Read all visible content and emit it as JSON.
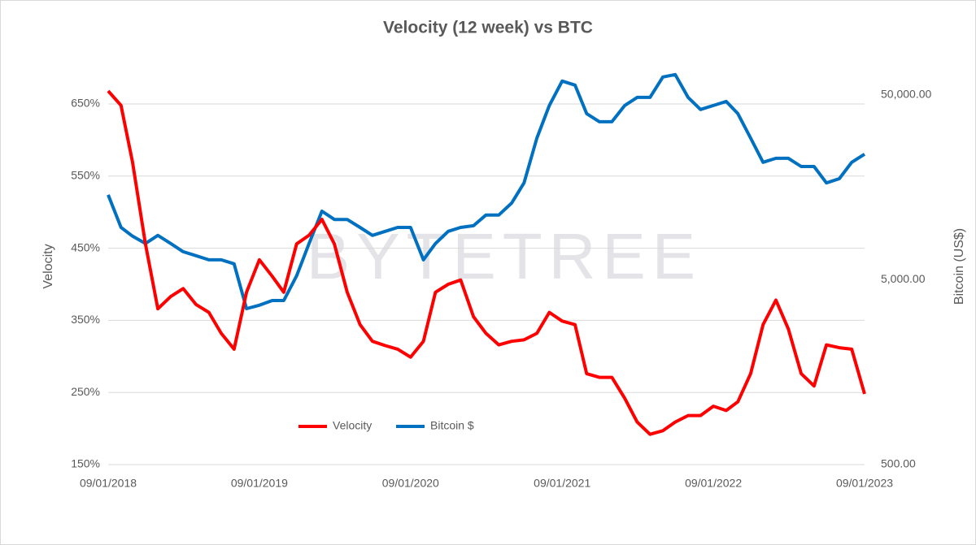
{
  "chart_data": {
    "type": "line",
    "title": "Velocity (12 week) vs BTC",
    "ylabel": "Velocity",
    "y2label": "Bitcoin (US$)",
    "watermark": "BYTETREE",
    "x": [
      "2018-01-09",
      "2018-02-09",
      "2018-03-09",
      "2018-04-09",
      "2018-05-09",
      "2018-06-09",
      "2018-07-09",
      "2018-08-09",
      "2018-09-09",
      "2018-10-09",
      "2018-11-09",
      "2018-12-09",
      "2019-01-09",
      "2019-02-09",
      "2019-03-09",
      "2019-04-09",
      "2019-05-09",
      "2019-06-09",
      "2019-07-09",
      "2019-08-09",
      "2019-09-09",
      "2019-10-09",
      "2019-11-09",
      "2019-12-09",
      "2020-01-09",
      "2020-02-09",
      "2020-03-09",
      "2020-04-09",
      "2020-05-09",
      "2020-06-09",
      "2020-07-09",
      "2020-08-09",
      "2020-09-09",
      "2020-10-09",
      "2020-11-09",
      "2020-12-09",
      "2021-01-09",
      "2021-02-09",
      "2021-03-09",
      "2021-04-09",
      "2021-05-09",
      "2021-06-09",
      "2021-07-09",
      "2021-08-09",
      "2021-09-09",
      "2021-10-09",
      "2021-11-09",
      "2021-12-09",
      "2022-01-09",
      "2022-02-09",
      "2022-03-09",
      "2022-04-09",
      "2022-05-09",
      "2022-06-09",
      "2022-07-09",
      "2022-08-09",
      "2022-09-09",
      "2022-10-09",
      "2022-11-09",
      "2022-12-09",
      "2023-01-09"
    ],
    "series": [
      {
        "name": "Velocity",
        "color": "#ff0000",
        "axis": "y",
        "values": [
          668,
          648,
          569,
          456,
          366,
          383,
          394,
          372,
          361,
          332,
          310,
          389,
          434,
          411,
          389,
          456,
          468,
          490,
          456,
          389,
          344,
          321,
          315,
          310,
          299,
          321,
          389,
          400,
          406,
          355,
          332,
          316,
          321,
          323,
          332,
          361,
          349,
          344,
          276,
          271,
          271,
          242,
          209,
          192,
          197,
          209,
          218,
          218,
          231,
          225,
          237,
          276,
          344,
          378,
          338,
          276,
          259,
          316,
          312,
          310,
          248
        ]
      },
      {
        "name": "Bitcoin $",
        "color": "#0070c0",
        "axis": "y2",
        "values": [
          14400,
          9600,
          8600,
          7850,
          8690,
          7850,
          7090,
          6750,
          6410,
          6410,
          6100,
          3490,
          3640,
          3860,
          3860,
          5250,
          7850,
          11750,
          10600,
          10600,
          9600,
          8690,
          9140,
          9600,
          9600,
          6410,
          7850,
          9140,
          9600,
          9800,
          11200,
          11200,
          13000,
          16700,
          29200,
          43800,
          59400,
          56500,
          39600,
          35800,
          35800,
          43800,
          48500,
          48500,
          62500,
          64400,
          48500,
          41700,
          43800,
          46100,
          39600,
          29200,
          21600,
          22700,
          22700,
          20500,
          20500,
          16700,
          17600,
          21600,
          23900
        ]
      }
    ],
    "xlim": [
      "2018-01-09",
      "2023-01-09"
    ],
    "xticks": [
      {
        "value": "2018-01-09",
        "label": "09/01/2018"
      },
      {
        "value": "2019-01-09",
        "label": "09/01/2019"
      },
      {
        "value": "2020-01-09",
        "label": "09/01/2020"
      },
      {
        "value": "2021-01-09",
        "label": "09/01/2021"
      },
      {
        "value": "2022-01-09",
        "label": "09/01/2022"
      },
      {
        "value": "2023-01-09",
        "label": "09/01/2023"
      }
    ],
    "ylim": [
      150,
      700
    ],
    "yticks": [
      {
        "value": 150,
        "label": "150%"
      },
      {
        "value": 250,
        "label": "250%"
      },
      {
        "value": 350,
        "label": "350%"
      },
      {
        "value": 450,
        "label": "450%"
      },
      {
        "value": 550,
        "label": "550%"
      },
      {
        "value": 650,
        "label": "650%"
      }
    ],
    "y2lim": [
      500,
      70000
    ],
    "y2scale": "log",
    "y2ticks": [
      {
        "value": 500,
        "label": "500.00"
      },
      {
        "value": 5000,
        "label": "5,000.00"
      },
      {
        "value": 50000,
        "label": "50,000.00"
      }
    ],
    "grid": true,
    "legend": "bottom"
  }
}
